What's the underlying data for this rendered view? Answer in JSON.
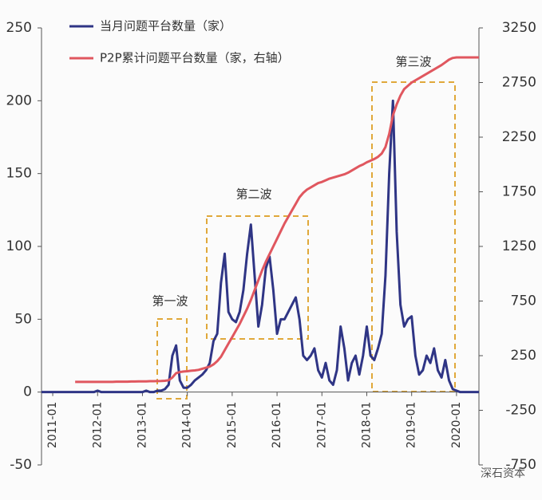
{
  "chart_data": {
    "type": "line",
    "categories": [
      null,
      null,
      null,
      "2011-01",
      null,
      null,
      null,
      null,
      null,
      null,
      null,
      null,
      null,
      null,
      null,
      "2012-01",
      null,
      null,
      null,
      null,
      null,
      null,
      null,
      null,
      null,
      null,
      null,
      "2013-01",
      null,
      null,
      null,
      null,
      null,
      null,
      null,
      null,
      null,
      null,
      null,
      "2014-01",
      null,
      null,
      null,
      null,
      null,
      null,
      null,
      null,
      null,
      null,
      null,
      "2015-01",
      null,
      null,
      null,
      null,
      null,
      null,
      null,
      null,
      null,
      null,
      null,
      "2016-01",
      null,
      null,
      null,
      null,
      null,
      null,
      null,
      null,
      null,
      null,
      null,
      "2017-01",
      null,
      null,
      null,
      null,
      null,
      null,
      null,
      null,
      null,
      null,
      null,
      "2018-01",
      null,
      null,
      null,
      null,
      null,
      null,
      null,
      null,
      null,
      null,
      null,
      "2019-01",
      null,
      null,
      null,
      null,
      null,
      null,
      null,
      null,
      null,
      null,
      null,
      "2020-01",
      null,
      null,
      null,
      null,
      null,
      null
    ],
    "series": [
      {
        "name": "当月问题平台数量（家）",
        "color": "#2f3585",
        "values": [
          0,
          0,
          0,
          0,
          0,
          0,
          0,
          0,
          0,
          0,
          0,
          0,
          0,
          0,
          0,
          1,
          0,
          0,
          0,
          0,
          0,
          0,
          0,
          0,
          0,
          0,
          0,
          0,
          1,
          0,
          0,
          1,
          1,
          2,
          5,
          25,
          32,
          8,
          3,
          3,
          5,
          8,
          10,
          12,
          15,
          20,
          35,
          40,
          75,
          95,
          55,
          50,
          48,
          55,
          70,
          95,
          115,
          80,
          45,
          60,
          85,
          93,
          70,
          40,
          50,
          50,
          55,
          60,
          65,
          50,
          25,
          22,
          25,
          30,
          15,
          10,
          20,
          8,
          5,
          15,
          45,
          30,
          8,
          20,
          25,
          12,
          25,
          45,
          25,
          22,
          30,
          40,
          80,
          150,
          200,
          110,
          60,
          45,
          50,
          52,
          25,
          12,
          15,
          25,
          20,
          30,
          15,
          10,
          22,
          8,
          2,
          1,
          0,
          0,
          0,
          0,
          0,
          0
        ]
      },
      {
        "name": "P2P累计问题平台数量（家，右轴）",
        "color": "#e0575f",
        "axis": "y2",
        "values": [
          null,
          null,
          null,
          null,
          null,
          null,
          null,
          null,
          null,
          10,
          10,
          10,
          10,
          10,
          10,
          10,
          10,
          10,
          10,
          10,
          12,
          12,
          12,
          12,
          14,
          14,
          15,
          15,
          15,
          16,
          16,
          17,
          18,
          20,
          25,
          50,
          90,
          100,
          105,
          108,
          112,
          115,
          120,
          130,
          140,
          150,
          170,
          200,
          240,
          300,
          360,
          420,
          480,
          540,
          610,
          680,
          760,
          850,
          940,
          1030,
          1110,
          1180,
          1250,
          1320,
          1390,
          1460,
          1520,
          1580,
          1640,
          1700,
          1740,
          1770,
          1790,
          1810,
          1830,
          1840,
          1855,
          1870,
          1880,
          1890,
          1900,
          1910,
          1925,
          1945,
          1965,
          1985,
          2000,
          2020,
          2035,
          2050,
          2070,
          2100,
          2160,
          2280,
          2450,
          2550,
          2630,
          2690,
          2720,
          2750,
          2770,
          2790,
          2810,
          2830,
          2850,
          2870,
          2890,
          2910,
          2935,
          2960,
          2975,
          2980,
          2980,
          2980,
          2980,
          2980,
          2980,
          2980
        ]
      }
    ],
    "ylim": [
      -50,
      250
    ],
    "yticks": [
      -50,
      0,
      50,
      100,
      150,
      200,
      250
    ],
    "y2lim": [
      -750,
      3250
    ],
    "y2ticks": [
      -750,
      -250,
      250,
      750,
      1250,
      1750,
      2250,
      2750,
      3250
    ],
    "legend": "top-left",
    "annotations": [
      "第一波",
      "第二波",
      "第三波"
    ],
    "watermark": "深石资本"
  }
}
